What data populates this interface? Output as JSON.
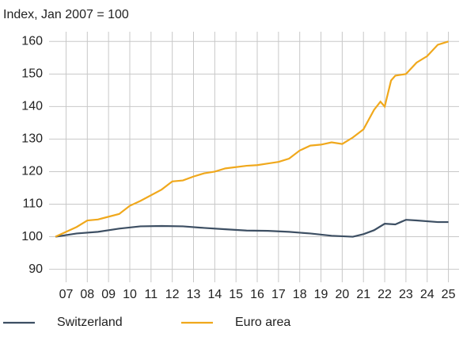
{
  "chart_data": {
    "type": "line",
    "subtitle": "Index, Jan 2007 = 100",
    "xlim": [
      2006.7,
      2026.0
    ],
    "xticks": [
      {
        "value": 2007.5,
        "label": "07"
      },
      {
        "value": 2008.5,
        "label": "08"
      },
      {
        "value": 2009.5,
        "label": "09"
      },
      {
        "value": 2010.5,
        "label": "10"
      },
      {
        "value": 2011.5,
        "label": "11"
      },
      {
        "value": 2012.5,
        "label": "12"
      },
      {
        "value": 2013.5,
        "label": "13"
      },
      {
        "value": 2014.5,
        "label": "14"
      },
      {
        "value": 2015.5,
        "label": "15"
      },
      {
        "value": 2016.5,
        "label": "16"
      },
      {
        "value": 2017.5,
        "label": "17"
      },
      {
        "value": 2018.5,
        "label": "18"
      },
      {
        "value": 2019.5,
        "label": "19"
      },
      {
        "value": 2020.5,
        "label": "20"
      },
      {
        "value": 2021.5,
        "label": "21"
      },
      {
        "value": 2022.5,
        "label": "22"
      },
      {
        "value": 2023.5,
        "label": "23"
      },
      {
        "value": 2024.5,
        "label": "24"
      },
      {
        "value": 2025.5,
        "label": "25"
      }
    ],
    "ylim": [
      86,
      163
    ],
    "yticks": [
      90,
      100,
      110,
      120,
      130,
      140,
      150,
      160
    ],
    "grid": true,
    "legend": "bottom",
    "series": [
      {
        "name": "Switzerland",
        "color": "#3d4f63",
        "x": [
          2007.0,
          2008.0,
          2009.0,
          2010.0,
          2011.0,
          2012.0,
          2013.0,
          2014.0,
          2015.0,
          2016.0,
          2017.0,
          2018.0,
          2019.0,
          2020.0,
          2021.0,
          2021.5,
          2022.0,
          2022.5,
          2023.0,
          2023.5,
          2024.0,
          2025.0,
          2025.5
        ],
        "values": [
          100,
          101,
          101.5,
          102.5,
          103.2,
          103.3,
          103.2,
          102.7,
          102.3,
          101.9,
          101.8,
          101.5,
          101,
          100.3,
          100,
          100.8,
          102,
          104,
          103.8,
          105.2,
          105,
          104.5,
          104.5
        ]
      },
      {
        "name": "Euro area",
        "color": "#f0a81c",
        "x": [
          2007.0,
          2008.0,
          2008.5,
          2009.0,
          2010.0,
          2010.5,
          2011.0,
          2012.0,
          2012.5,
          2013.0,
          2013.5,
          2014.0,
          2014.5,
          2015.0,
          2016.0,
          2016.5,
          2017.0,
          2017.5,
          2018.0,
          2018.5,
          2019.0,
          2019.5,
          2020.0,
          2020.5,
          2021.0,
          2021.5,
          2022.0,
          2022.3,
          2022.5,
          2022.8,
          2023.0,
          2023.5,
          2024.0,
          2024.5,
          2025.0,
          2025.5
        ],
        "values": [
          100,
          103,
          105,
          105.3,
          107,
          109.5,
          111,
          114.5,
          117,
          117.3,
          118.5,
          119.5,
          120,
          121,
          121.8,
          122,
          122.5,
          123,
          124,
          126.5,
          128,
          128.3,
          129,
          128.5,
          130.5,
          133,
          139,
          141.5,
          140,
          148,
          149.5,
          150,
          153.5,
          155.5,
          159,
          160
        ]
      }
    ]
  }
}
